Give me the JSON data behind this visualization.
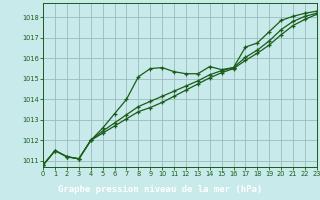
{
  "xlabel": "Graphe pression niveau de la mer (hPa)",
  "xlim": [
    0,
    23
  ],
  "ylim": [
    1010.7,
    1018.7
  ],
  "yticks": [
    1011,
    1012,
    1013,
    1014,
    1015,
    1016,
    1017,
    1018
  ],
  "xticks": [
    0,
    1,
    2,
    3,
    4,
    5,
    6,
    7,
    8,
    9,
    10,
    11,
    12,
    13,
    14,
    15,
    16,
    17,
    18,
    19,
    20,
    21,
    22,
    23
  ],
  "bg_color": "#c8eaea",
  "plot_bg": "#c8eaea",
  "grid_color": "#9abcbc",
  "line_color": "#1a5c1a",
  "label_bg": "#2e7d2e",
  "label_text": "#ffffff",
  "series1": [
    1010.8,
    1011.5,
    1011.2,
    1011.1,
    1012.0,
    1012.6,
    1013.3,
    1014.0,
    1015.1,
    1015.5,
    1015.55,
    1015.35,
    1015.25,
    1015.25,
    1015.6,
    1015.45,
    1015.55,
    1016.55,
    1016.75,
    1017.3,
    1017.85,
    1018.05,
    1018.2,
    1018.3
  ],
  "series2": [
    1010.8,
    1011.5,
    1011.2,
    1011.1,
    1012.0,
    1012.45,
    1012.85,
    1013.25,
    1013.65,
    1013.9,
    1014.15,
    1014.4,
    1014.65,
    1014.9,
    1015.2,
    1015.4,
    1015.55,
    1016.05,
    1016.4,
    1016.85,
    1017.4,
    1017.8,
    1018.05,
    1018.2
  ],
  "series3": [
    1010.8,
    1011.5,
    1011.2,
    1011.1,
    1012.0,
    1012.35,
    1012.7,
    1013.05,
    1013.4,
    1013.6,
    1013.85,
    1014.15,
    1014.45,
    1014.75,
    1015.05,
    1015.3,
    1015.5,
    1015.9,
    1016.25,
    1016.65,
    1017.15,
    1017.6,
    1017.9,
    1018.15
  ]
}
